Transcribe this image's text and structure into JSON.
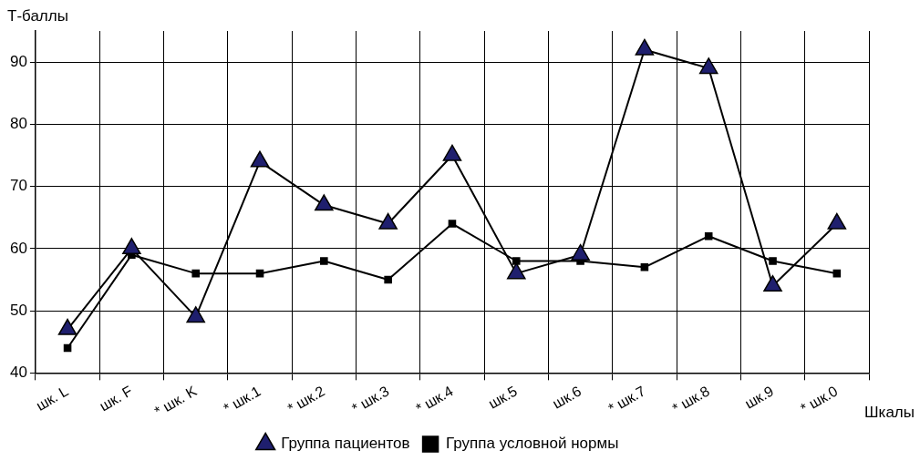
{
  "chart_data": {
    "type": "line",
    "ylabel": "Т-баллы",
    "xlabel": "Шкалы",
    "categories": [
      "шк. L",
      "шк. F",
      "* шк. K",
      "* шк.1",
      "* шк.2",
      "* шк.3",
      "* шк.4",
      "шк.5",
      "шк.6",
      "* шк.7",
      "* шк.8",
      "шк.9",
      "* шк.0"
    ],
    "series": [
      {
        "name": "Группа пациентов",
        "color": "#1f1f6e",
        "marker": "triangle",
        "values": [
          47,
          60,
          49,
          74,
          67,
          64,
          75,
          56,
          59,
          92,
          89,
          54,
          64
        ]
      },
      {
        "name": "Группа условной нормы",
        "color": "#000000",
        "marker": "square",
        "values": [
          44,
          59,
          56,
          56,
          58,
          55,
          64,
          58,
          58,
          57,
          62,
          58,
          56
        ]
      }
    ],
    "ylim": [
      40,
      95
    ],
    "yticks": [
      40,
      50,
      60,
      70,
      80,
      90
    ],
    "grid": true,
    "legend": "bottom",
    "line_style": "solid"
  }
}
